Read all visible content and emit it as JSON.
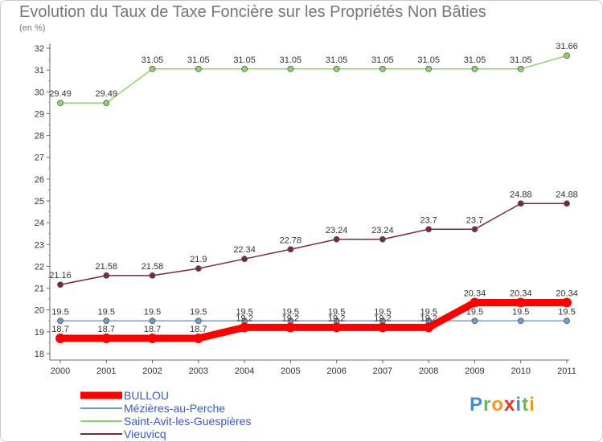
{
  "title": "Evolution du Taux de Taxe Foncière sur les Propriétés Non Bâties",
  "subtitle": "(en %)",
  "logo": {
    "text": "Proxiti",
    "letters": [
      "P",
      "r",
      "o",
      "x",
      "i",
      "t",
      "i"
    ],
    "colors": [
      "#4a8ad6",
      "#6fb84a",
      "#f29a1f",
      "#e0342b",
      "#4a8ad6",
      "#6fb84a",
      "#f29a1f"
    ]
  },
  "chart_data": {
    "type": "line",
    "categories": [
      "2000",
      "2001",
      "2002",
      "2003",
      "2004",
      "2005",
      "2006",
      "2007",
      "2008",
      "2009",
      "2010",
      "2011"
    ],
    "ylim": [
      18,
      32
    ],
    "yticks": [
      "18",
      "19",
      "20",
      "21",
      "22",
      "23",
      "24",
      "25",
      "26",
      "27",
      "28",
      "29",
      "30",
      "31",
      "32"
    ],
    "grid": false,
    "legend": "bottom-left",
    "series": [
      {
        "name": "BULLOU",
        "color": "#ff0000",
        "values": [
          18.7,
          18.7,
          18.7,
          18.7,
          19.2,
          19.2,
          19.2,
          19.2,
          19.2,
          20.34,
          20.34,
          20.34
        ],
        "labels": [
          "18.7",
          "18.7",
          "18.7",
          "18.7",
          "19.2",
          "19.2",
          "19.2",
          "19.2",
          "19.2",
          "20.34",
          "20.34",
          "20.34"
        ]
      },
      {
        "name": "Mézières-au-Perche",
        "color": "#6f9fc9",
        "values": [
          19.5,
          19.5,
          19.5,
          19.5,
          19.5,
          19.5,
          19.5,
          19.5,
          19.5,
          19.5,
          19.5,
          19.5
        ],
        "labels": [
          "19.5",
          "19.5",
          "19.5",
          "19.5",
          "19.5",
          "19.5",
          "19.5",
          "19.5",
          "19.5",
          "19.5",
          "19.5",
          "19.5"
        ]
      },
      {
        "name": "Saint-Avit-les-Guespières",
        "color": "#8fd46a",
        "values": [
          29.49,
          29.49,
          31.05,
          31.05,
          31.05,
          31.05,
          31.05,
          31.05,
          31.05,
          31.05,
          31.05,
          31.66
        ],
        "labels": [
          "29.49",
          "29.49",
          "31.05",
          "31.05",
          "31.05",
          "31.05",
          "31.05",
          "31.05",
          "31.05",
          "31.05",
          "31.05",
          "31.66"
        ]
      },
      {
        "name": "Vieuvicq",
        "color": "#7a2a36",
        "values": [
          21.16,
          21.58,
          21.58,
          21.9,
          22.34,
          22.78,
          23.24,
          23.24,
          23.7,
          23.7,
          24.88,
          24.88
        ],
        "labels": [
          "21.16",
          "21.58",
          "21.58",
          "21.9",
          "22.34",
          "22.78",
          "23.24",
          "23.24",
          "23.7",
          "23.7",
          "24.88",
          "24.88"
        ]
      }
    ]
  }
}
